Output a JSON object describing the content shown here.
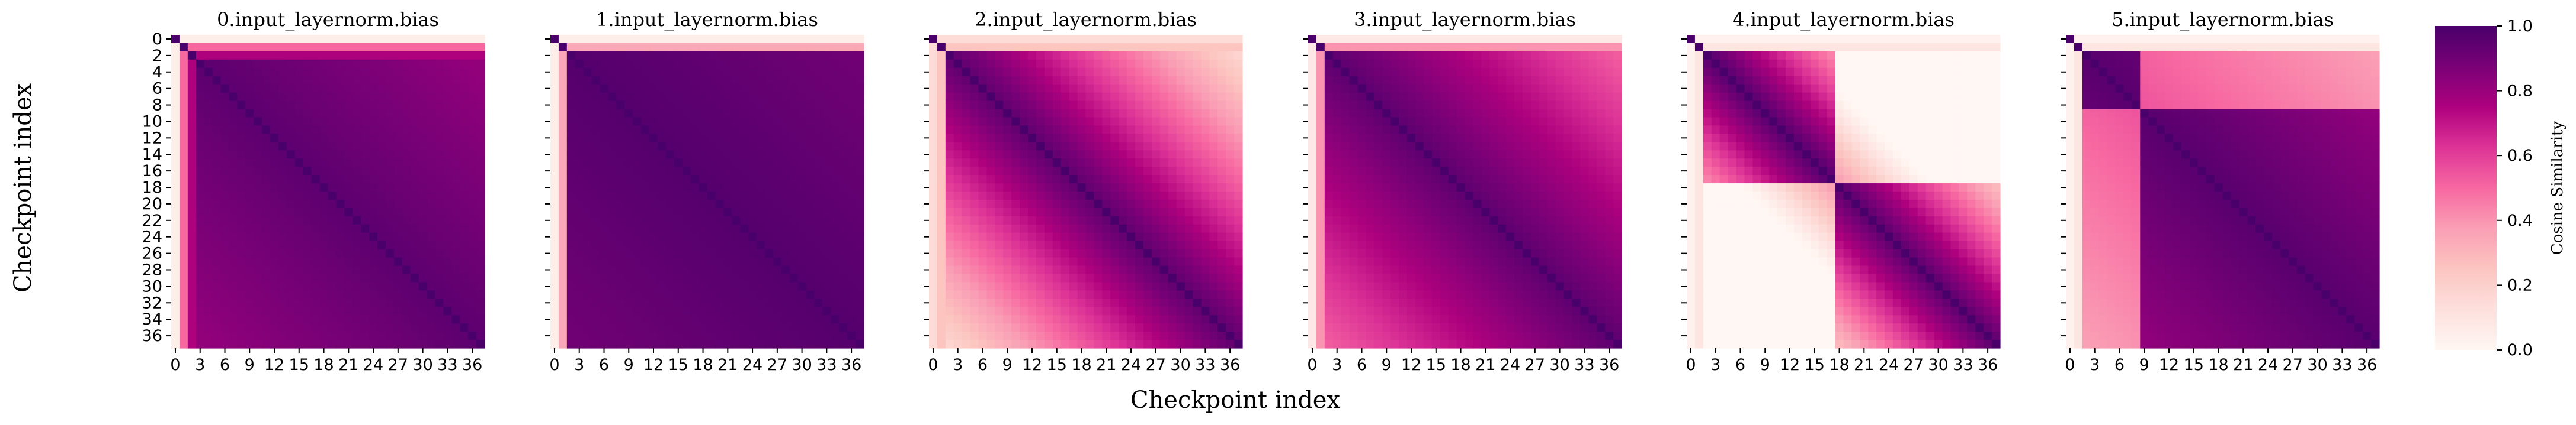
{
  "figure": {
    "xlabel": "Checkpoint index",
    "ylabel": "Checkpoint index",
    "colorbar": {
      "label": "Cosine Similarity",
      "ticks": [
        "0.0",
        "0.2",
        "0.4",
        "0.6",
        "0.8",
        "1.0"
      ],
      "range": [
        0,
        1
      ],
      "colormap": "RdPu",
      "color_stops": [
        "#fff7f3",
        "#fde0dd",
        "#fcc5c0",
        "#fa9fb5",
        "#f768a1",
        "#dd3497",
        "#ae017e",
        "#7a0177",
        "#49006a"
      ]
    }
  },
  "chart_data": [
    {
      "type": "heatmap",
      "title": "0.input_layernorm.bias",
      "n": 38,
      "x_tick_labels": [
        "0",
        "3",
        "6",
        "9",
        "12",
        "15",
        "18",
        "21",
        "24",
        "27",
        "30",
        "33",
        "36"
      ],
      "y_tick_labels": [
        "0",
        "2",
        "4",
        "6",
        "8",
        "10",
        "12",
        "14",
        "16",
        "18",
        "20",
        "22",
        "24",
        "26",
        "28",
        "30",
        "32",
        "34",
        "36"
      ],
      "blocks": [
        {
          "from": 0,
          "to": 1,
          "within": 0.98
        },
        {
          "from": 2,
          "to": 37,
          "within": 0.95
        }
      ],
      "cross_block_similarity": 0.72,
      "diagonal_decay": 0.004,
      "early_checkpoint_similarity": [
        {
          "index": 0,
          "value": 0.05
        },
        {
          "index": 1,
          "value": 0.5
        },
        {
          "index": 2,
          "value": 0.75
        }
      ]
    },
    {
      "type": "heatmap",
      "title": "1.input_layernorm.bias",
      "n": 38,
      "x_tick_labels": [
        "0",
        "3",
        "6",
        "9",
        "12",
        "15",
        "18",
        "21",
        "24",
        "27",
        "30",
        "33",
        "36"
      ],
      "blocks": [
        {
          "from": 0,
          "to": 1,
          "within": 0.98
        },
        {
          "from": 2,
          "to": 37,
          "within": 0.97
        }
      ],
      "cross_block_similarity": 0.8,
      "diagonal_decay": 0.002,
      "early_checkpoint_similarity": [
        {
          "index": 0,
          "value": 0.05
        },
        {
          "index": 1,
          "value": 0.35
        }
      ]
    },
    {
      "type": "heatmap",
      "title": "2.input_layernorm.bias",
      "n": 38,
      "x_tick_labels": [
        "0",
        "3",
        "6",
        "9",
        "12",
        "15",
        "18",
        "21",
        "24",
        "27",
        "30",
        "33",
        "36"
      ],
      "blocks": [
        {
          "from": 0,
          "to": 1,
          "within": 0.98
        },
        {
          "from": 2,
          "to": 37,
          "within": 0.95
        }
      ],
      "cross_block_similarity": 0.35,
      "diagonal_decay": 0.022,
      "early_checkpoint_similarity": [
        {
          "index": 0,
          "value": 0.15
        },
        {
          "index": 1,
          "value": 0.25
        }
      ]
    },
    {
      "type": "heatmap",
      "title": "3.input_layernorm.bias",
      "n": 38,
      "x_tick_labels": [
        "0",
        "3",
        "6",
        "9",
        "12",
        "15",
        "18",
        "21",
        "24",
        "27",
        "30",
        "33",
        "36"
      ],
      "blocks": [
        {
          "from": 0,
          "to": 1,
          "within": 0.98
        },
        {
          "from": 2,
          "to": 37,
          "within": 0.95
        }
      ],
      "cross_block_similarity": 0.45,
      "diagonal_decay": 0.012,
      "early_checkpoint_similarity": [
        {
          "index": 0,
          "value": 0.08
        },
        {
          "index": 1,
          "value": 0.4
        }
      ]
    },
    {
      "type": "heatmap",
      "title": "4.input_layernorm.bias",
      "n": 38,
      "x_tick_labels": [
        "0",
        "3",
        "6",
        "9",
        "12",
        "15",
        "18",
        "21",
        "24",
        "27",
        "30",
        "33",
        "36"
      ],
      "blocks": [
        {
          "from": 0,
          "to": 1,
          "within": 0.98
        },
        {
          "from": 2,
          "to": 17,
          "within": 0.97
        },
        {
          "from": 18,
          "to": 37,
          "within": 0.96
        }
      ],
      "cross_block_similarity": 0.08,
      "block_pair_similarity": [
        {
          "a": 1,
          "b": 2,
          "value": 0.4
        }
      ],
      "diagonal_decay": 0.035,
      "early_checkpoint_similarity": [
        {
          "index": 0,
          "value": 0.03
        },
        {
          "index": 1,
          "value": 0.1
        }
      ]
    },
    {
      "type": "heatmap",
      "title": "5.input_layernorm.bias",
      "n": 38,
      "x_tick_labels": [
        "0",
        "3",
        "6",
        "9",
        "12",
        "15",
        "18",
        "21",
        "24",
        "27",
        "30",
        "33",
        "36"
      ],
      "blocks": [
        {
          "from": 0,
          "to": 1,
          "within": 0.98
        },
        {
          "from": 2,
          "to": 8,
          "within": 0.96
        },
        {
          "from": 9,
          "to": 37,
          "within": 0.96
        }
      ],
      "cross_block_similarity": 0.05,
      "block_pair_similarity": [
        {
          "a": 1,
          "b": 2,
          "value": 0.55
        }
      ],
      "diagonal_decay": 0.005,
      "early_checkpoint_similarity": [
        {
          "index": 0,
          "value": 0.03
        },
        {
          "index": 1,
          "value": 0.1
        }
      ]
    }
  ]
}
